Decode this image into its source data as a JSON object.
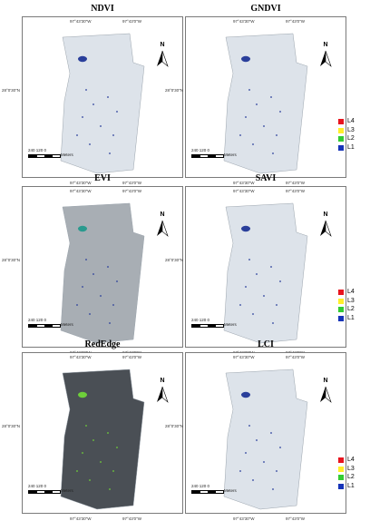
{
  "panels": [
    {
      "title": "NDVI",
      "lon_w": "97°43'30\"W",
      "lon_e": "97°43'0\"W",
      "lat": "28°0'30\"N",
      "scale_nums": "240  120    0",
      "scale_unit": "Meters",
      "north": "N",
      "map_tone": "#dde3ea",
      "blob": "#2a3f9b"
    },
    {
      "title": "GNDVI",
      "lon_w": "97°43'30\"W",
      "lon_e": "97°43'0\"W",
      "lat": "28°0'30\"N",
      "scale_nums": "240  120    0",
      "scale_unit": "Meters",
      "north": "N",
      "map_tone": "#dde3ea",
      "blob": "#2a3f9b"
    },
    {
      "title": "EVI",
      "lon_w": "97°43'30\"W",
      "lon_e": "97°43'0\"W",
      "lat": "28°0'30\"N",
      "scale_nums": "240  120    0",
      "scale_unit": "Meters",
      "north": "N",
      "map_tone": "#a8aeb4",
      "blob": "#2a9a8e"
    },
    {
      "title": "SAVI",
      "lon_w": "97°43'30\"W",
      "lon_e": "97°43'0\"W",
      "lat": "28°0'30\"N",
      "scale_nums": "240  120    0",
      "scale_unit": "Meters",
      "north": "N",
      "map_tone": "#dde3ea",
      "blob": "#2a3f9b"
    },
    {
      "title": "RedEdge",
      "lon_w": "97°43'30\"W",
      "lon_e": "97°43'0\"W",
      "lat": "28°0'30\"N",
      "scale_nums": "240  120    0",
      "scale_unit": "Meters",
      "north": "N",
      "map_tone": "#4a4f55",
      "blob": "#6ecf3a"
    },
    {
      "title": "LCI",
      "lon_w": "97°43'30\"W",
      "lon_e": "97°43'0\"W",
      "lat": "28°0'30\"N",
      "scale_nums": "240  120    0",
      "scale_unit": "Meters",
      "north": "N",
      "map_tone": "#dde3ea",
      "blob": "#2a3f9b"
    }
  ],
  "legend": [
    {
      "label": "L4",
      "color": "#e8141e"
    },
    {
      "label": "L3",
      "color": "#ffef2a"
    },
    {
      "label": "L2",
      "color": "#33cc33"
    },
    {
      "label": "L1",
      "color": "#1533b8"
    }
  ]
}
